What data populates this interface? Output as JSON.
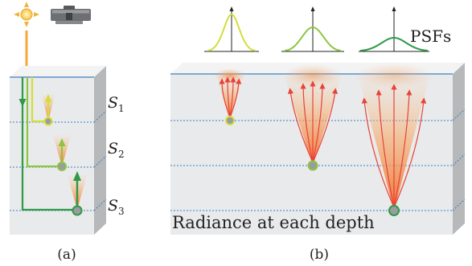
{
  "panel_a": {
    "caption": "(a)",
    "layer_labels": [
      "S",
      "S",
      "S"
    ],
    "layer_subscripts": [
      "1",
      "2",
      "3"
    ],
    "icons": [
      "light-source-icon",
      "camera-icon"
    ]
  },
  "panel_b": {
    "caption": "(b)",
    "psf_label": "PSFs",
    "bottom_label": "Radiance at each depth"
  },
  "colors": {
    "light": "#f4a93a",
    "yellow_green": "#d2de3a",
    "mid_green": "#8cc63f",
    "dark_green": "#2e9a48",
    "radiance_orange": "#f39a3c",
    "ray_red": "#e8413a",
    "surface_blue": "#3b7fc4",
    "block_front": "#e9eaeb",
    "block_side": "#b6b8ba",
    "block_top": "#f3f3f4"
  }
}
